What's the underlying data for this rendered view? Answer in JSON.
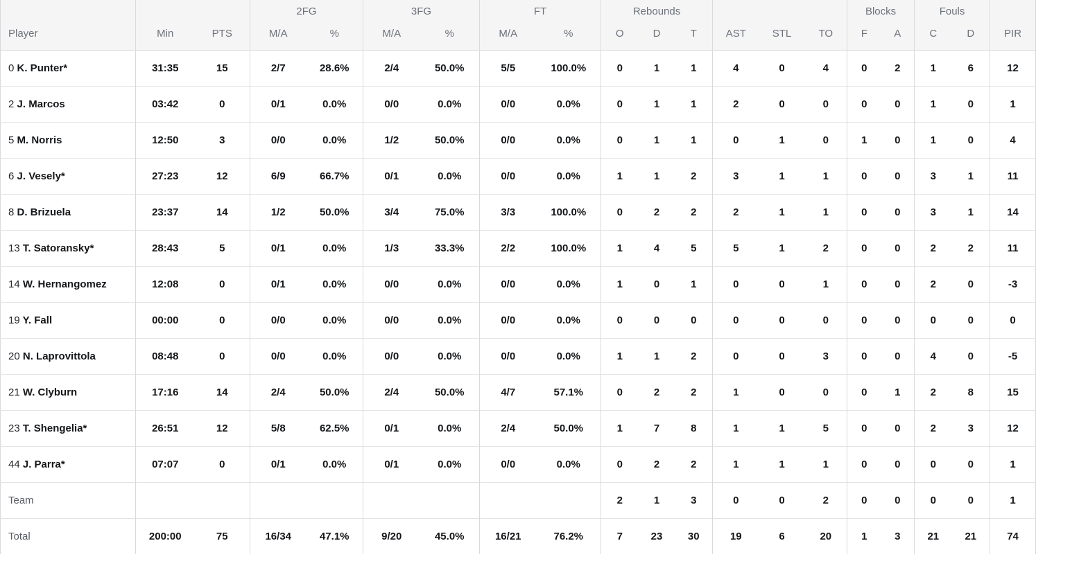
{
  "colors": {
    "header_bg": "#f5f5f6",
    "header_text": "#6d727a",
    "body_text": "#141619",
    "muted_text": "#585c63",
    "row_border": "#e3e4e6",
    "column_border": "#d9dadc"
  },
  "table": {
    "group_headers": [
      {
        "label": "",
        "span": 1
      },
      {
        "label": "",
        "span": 2
      },
      {
        "label": "2FG",
        "span": 2
      },
      {
        "label": "3FG",
        "span": 2
      },
      {
        "label": "FT",
        "span": 2
      },
      {
        "label": "Rebounds",
        "span": 3
      },
      {
        "label": "",
        "span": 3
      },
      {
        "label": "Blocks",
        "span": 2
      },
      {
        "label": "Fouls",
        "span": 2
      },
      {
        "label": "",
        "span": 1
      }
    ],
    "columns": [
      "Player",
      "Min",
      "PTS",
      "M/A",
      "%",
      "M/A",
      "%",
      "M/A",
      "%",
      "O",
      "D",
      "T",
      "AST",
      "STL",
      "TO",
      "F",
      "A",
      "C",
      "D",
      "PIR"
    ],
    "players": [
      {
        "number": "0",
        "name": "K. Punter*",
        "stats": [
          "31:35",
          "15",
          "2/7",
          "28.6%",
          "2/4",
          "50.0%",
          "5/5",
          "100.0%",
          "0",
          "1",
          "1",
          "4",
          "0",
          "4",
          "0",
          "2",
          "1",
          "6",
          "12"
        ]
      },
      {
        "number": "2",
        "name": "J. Marcos",
        "stats": [
          "03:42",
          "0",
          "0/1",
          "0.0%",
          "0/0",
          "0.0%",
          "0/0",
          "0.0%",
          "0",
          "1",
          "1",
          "2",
          "0",
          "0",
          "0",
          "0",
          "1",
          "0",
          "1"
        ]
      },
      {
        "number": "5",
        "name": "M. Norris",
        "stats": [
          "12:50",
          "3",
          "0/0",
          "0.0%",
          "1/2",
          "50.0%",
          "0/0",
          "0.0%",
          "0",
          "1",
          "1",
          "0",
          "1",
          "0",
          "1",
          "0",
          "1",
          "0",
          "4"
        ]
      },
      {
        "number": "6",
        "name": "J. Vesely*",
        "stats": [
          "27:23",
          "12",
          "6/9",
          "66.7%",
          "0/1",
          "0.0%",
          "0/0",
          "0.0%",
          "1",
          "1",
          "2",
          "3",
          "1",
          "1",
          "0",
          "0",
          "3",
          "1",
          "11"
        ]
      },
      {
        "number": "8",
        "name": "D. Brizuela",
        "stats": [
          "23:37",
          "14",
          "1/2",
          "50.0%",
          "3/4",
          "75.0%",
          "3/3",
          "100.0%",
          "0",
          "2",
          "2",
          "2",
          "1",
          "1",
          "0",
          "0",
          "3",
          "1",
          "14"
        ]
      },
      {
        "number": "13",
        "name": "T. Satoransky*",
        "stats": [
          "28:43",
          "5",
          "0/1",
          "0.0%",
          "1/3",
          "33.3%",
          "2/2",
          "100.0%",
          "1",
          "4",
          "5",
          "5",
          "1",
          "2",
          "0",
          "0",
          "2",
          "2",
          "11"
        ]
      },
      {
        "number": "14",
        "name": "W. Hernangomez",
        "stats": [
          "12:08",
          "0",
          "0/1",
          "0.0%",
          "0/0",
          "0.0%",
          "0/0",
          "0.0%",
          "1",
          "0",
          "1",
          "0",
          "0",
          "1",
          "0",
          "0",
          "2",
          "0",
          "-3"
        ]
      },
      {
        "number": "19",
        "name": "Y. Fall",
        "stats": [
          "00:00",
          "0",
          "0/0",
          "0.0%",
          "0/0",
          "0.0%",
          "0/0",
          "0.0%",
          "0",
          "0",
          "0",
          "0",
          "0",
          "0",
          "0",
          "0",
          "0",
          "0",
          "0"
        ]
      },
      {
        "number": "20",
        "name": "N. Laprovittola",
        "stats": [
          "08:48",
          "0",
          "0/0",
          "0.0%",
          "0/0",
          "0.0%",
          "0/0",
          "0.0%",
          "1",
          "1",
          "2",
          "0",
          "0",
          "3",
          "0",
          "0",
          "4",
          "0",
          "-5"
        ]
      },
      {
        "number": "21",
        "name": "W. Clyburn",
        "stats": [
          "17:16",
          "14",
          "2/4",
          "50.0%",
          "2/4",
          "50.0%",
          "4/7",
          "57.1%",
          "0",
          "2",
          "2",
          "1",
          "0",
          "0",
          "0",
          "1",
          "2",
          "8",
          "15"
        ]
      },
      {
        "number": "23",
        "name": "T. Shengelia*",
        "stats": [
          "26:51",
          "12",
          "5/8",
          "62.5%",
          "0/1",
          "0.0%",
          "2/4",
          "50.0%",
          "1",
          "7",
          "8",
          "1",
          "1",
          "5",
          "0",
          "0",
          "2",
          "3",
          "12"
        ]
      },
      {
        "number": "44",
        "name": "J. Parra*",
        "stats": [
          "07:07",
          "0",
          "0/1",
          "0.0%",
          "0/1",
          "0.0%",
          "0/0",
          "0.0%",
          "0",
          "2",
          "2",
          "1",
          "1",
          "1",
          "0",
          "0",
          "0",
          "0",
          "1"
        ]
      }
    ],
    "summary_rows": [
      {
        "label": "Team",
        "stats": [
          "",
          "",
          "",
          "",
          "",
          "",
          "",
          "",
          "2",
          "1",
          "3",
          "0",
          "0",
          "2",
          "0",
          "0",
          "0",
          "0",
          "1"
        ]
      },
      {
        "label": "Total",
        "stats": [
          "200:00",
          "75",
          "16/34",
          "47.1%",
          "9/20",
          "45.0%",
          "16/21",
          "76.2%",
          "7",
          "23",
          "30",
          "19",
          "6",
          "20",
          "1",
          "3",
          "21",
          "21",
          "74"
        ]
      }
    ]
  }
}
